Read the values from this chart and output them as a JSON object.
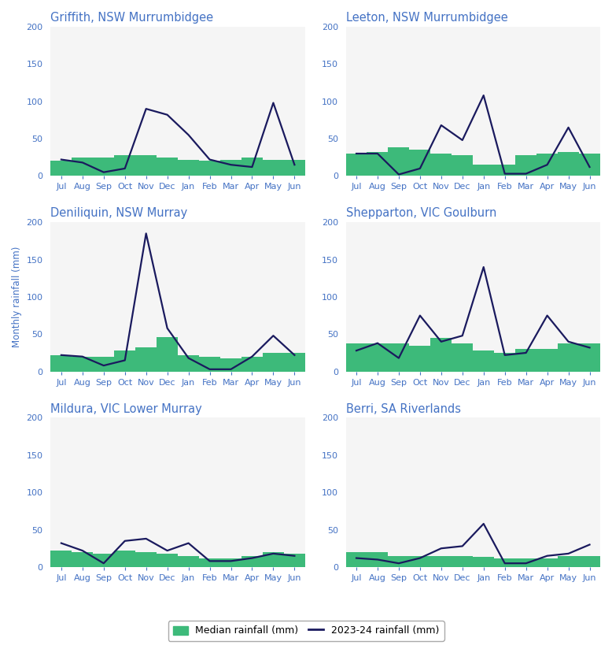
{
  "months": [
    "Jul",
    "Aug",
    "Sep",
    "Oct",
    "Nov",
    "Dec",
    "Jan",
    "Feb",
    "Mar",
    "Apr",
    "May",
    "Jun"
  ],
  "subplots": [
    {
      "title": "Griffith, NSW Murrumbidgee",
      "median": [
        20,
        25,
        25,
        28,
        28,
        25,
        22,
        20,
        22,
        25,
        22,
        22
      ],
      "observed": [
        22,
        18,
        5,
        10,
        90,
        82,
        55,
        22,
        15,
        12,
        98,
        15
      ]
    },
    {
      "title": "Leeton, NSW Murrumbidgee",
      "median": [
        30,
        32,
        38,
        35,
        30,
        28,
        15,
        15,
        28,
        30,
        32,
        30
      ],
      "observed": [
        30,
        30,
        2,
        10,
        68,
        48,
        108,
        3,
        3,
        15,
        65,
        12
      ]
    },
    {
      "title": "Deniliquin, NSW Murray",
      "median": [
        22,
        20,
        20,
        28,
        32,
        46,
        22,
        20,
        18,
        20,
        25,
        25
      ],
      "observed": [
        22,
        20,
        8,
        15,
        185,
        58,
        18,
        3,
        3,
        20,
        48,
        22
      ]
    },
    {
      "title": "Shepparton, VIC Goulburn",
      "median": [
        38,
        38,
        38,
        35,
        45,
        38,
        28,
        25,
        30,
        30,
        38,
        38
      ],
      "observed": [
        28,
        38,
        18,
        75,
        40,
        48,
        140,
        22,
        25,
        75,
        40,
        32
      ]
    },
    {
      "title": "Mildura, VIC Lower Murray",
      "median": [
        22,
        20,
        18,
        22,
        20,
        18,
        15,
        12,
        12,
        15,
        20,
        18
      ],
      "observed": [
        32,
        22,
        5,
        35,
        38,
        22,
        32,
        8,
        8,
        12,
        18,
        15
      ]
    },
    {
      "title": "Berri, SA Riverlands",
      "median": [
        20,
        20,
        15,
        15,
        15,
        15,
        14,
        12,
        12,
        12,
        15,
        15
      ],
      "observed": [
        12,
        10,
        5,
        12,
        25,
        28,
        58,
        5,
        5,
        15,
        18,
        30
      ]
    }
  ],
  "bar_color": "#3dba7a",
  "line_color": "#1a1a5e",
  "title_color": "#4472c4",
  "axis_label_color": "#4472c4",
  "tick_color": "#4472c4",
  "ylabel": "Monthly rainfall (mm)",
  "ylim": [
    0,
    200
  ],
  "yticks": [
    0,
    50,
    100,
    150,
    200
  ],
  "legend_bar_label": "Median rainfall (mm)",
  "legend_line_label": "2023-24 rainfall (mm)",
  "background_color": "#ffffff",
  "subplot_bg": "#f5f5f5",
  "title_fontsize": 10.5,
  "axis_label_fontsize": 8.5,
  "tick_fontsize": 8
}
